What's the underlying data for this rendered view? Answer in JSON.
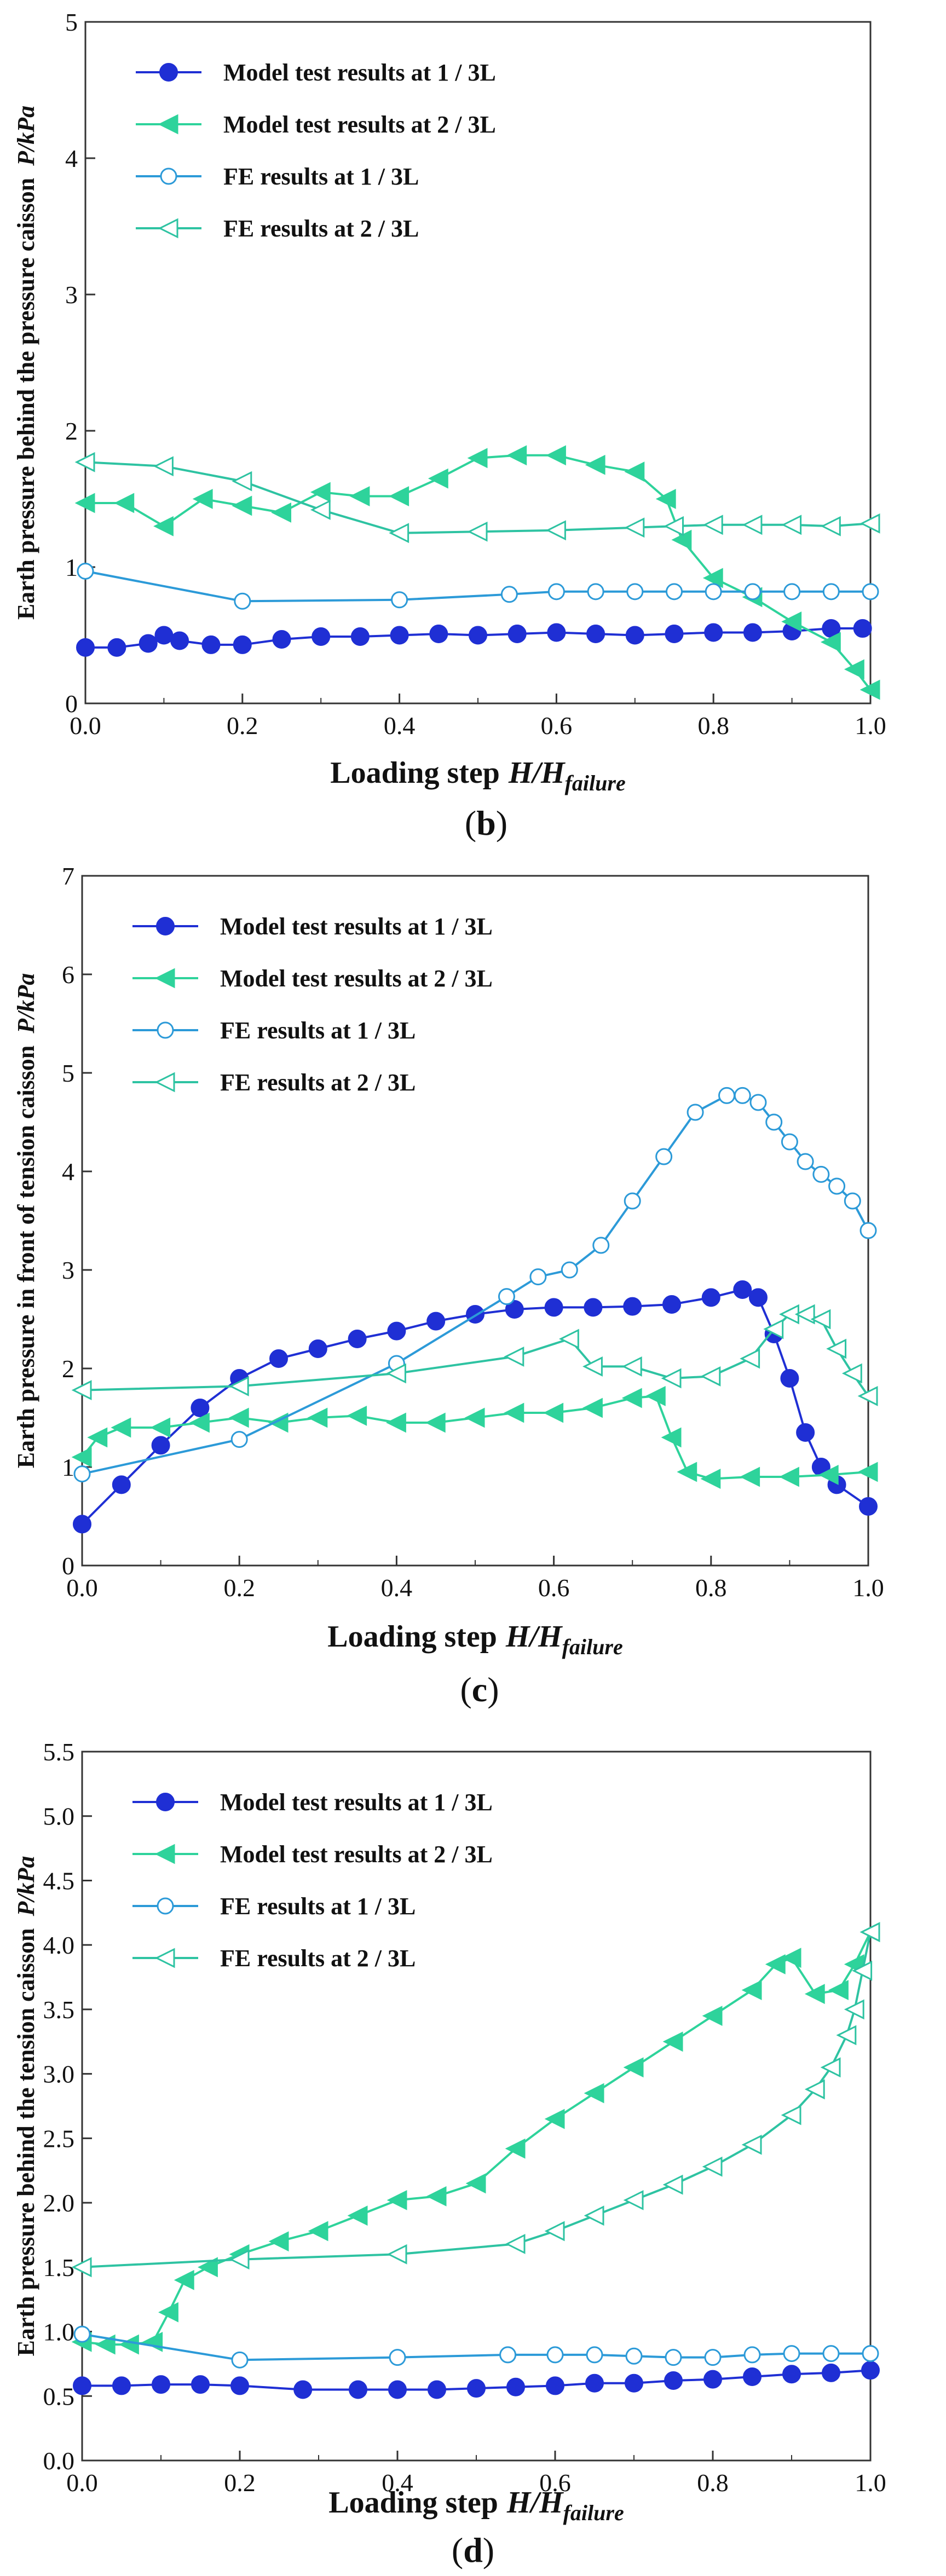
{
  "chart_data": [
    {
      "type": "line",
      "panel_label": "b",
      "ylabel_main": "Earth pressure behind the pressure caisson",
      "ylabel_unit": "P/kPa",
      "xlabel_main": "Loading step",
      "xlabel_var": "H/H",
      "xlabel_sub": "failure",
      "xlim": [
        0,
        1
      ],
      "ylim": [
        0,
        5
      ],
      "xticks": [
        "0.0",
        "0.2",
        "0.4",
        "0.6",
        "0.8",
        "1.0"
      ],
      "yticks": [
        "0",
        "1",
        "2",
        "3",
        "4",
        "5"
      ],
      "series": [
        {
          "name": "Model test results at 1 / 3L",
          "color": "#1f2fd4",
          "marker": "circle-filled",
          "x": [
            0,
            0.04,
            0.08,
            0.1,
            0.12,
            0.16,
            0.2,
            0.25,
            0.3,
            0.35,
            0.4,
            0.45,
            0.5,
            0.55,
            0.6,
            0.65,
            0.7,
            0.75,
            0.8,
            0.85,
            0.9,
            0.95,
            0.99
          ],
          "y": [
            0.41,
            0.41,
            0.44,
            0.5,
            0.46,
            0.43,
            0.43,
            0.47,
            0.49,
            0.49,
            0.5,
            0.51,
            0.5,
            0.51,
            0.52,
            0.51,
            0.5,
            0.51,
            0.52,
            0.52,
            0.53,
            0.55,
            0.55
          ]
        },
        {
          "name": "Model test results at 2 / 3L",
          "color": "#2ed39b",
          "marker": "triangle-left-filled",
          "x": [
            0,
            0.05,
            0.1,
            0.15,
            0.2,
            0.25,
            0.3,
            0.35,
            0.4,
            0.45,
            0.5,
            0.55,
            0.6,
            0.65,
            0.7,
            0.74,
            0.76,
            0.8,
            0.85,
            0.9,
            0.95,
            0.98,
            1.0
          ],
          "y": [
            1.47,
            1.47,
            1.3,
            1.5,
            1.45,
            1.4,
            1.55,
            1.52,
            1.52,
            1.65,
            1.8,
            1.82,
            1.82,
            1.75,
            1.7,
            1.5,
            1.2,
            0.92,
            0.78,
            0.6,
            0.45,
            0.25,
            0.1
          ]
        },
        {
          "name": "FE  results at 1 / 3L",
          "color": "#2c9ad8",
          "marker": "circle-open",
          "x": [
            0,
            0.2,
            0.4,
            0.54,
            0.6,
            0.65,
            0.7,
            0.75,
            0.8,
            0.85,
            0.9,
            0.95,
            1.0
          ],
          "y": [
            0.97,
            0.75,
            0.76,
            0.8,
            0.82,
            0.82,
            0.82,
            0.82,
            0.82,
            0.82,
            0.82,
            0.82,
            0.82
          ]
        },
        {
          "name": "FE  results at 2 / 3L",
          "color": "#2ec3a2",
          "marker": "triangle-left-open",
          "x": [
            0,
            0.1,
            0.2,
            0.3,
            0.4,
            0.5,
            0.6,
            0.7,
            0.75,
            0.8,
            0.85,
            0.9,
            0.95,
            1.0
          ],
          "y": [
            1.77,
            1.74,
            1.63,
            1.42,
            1.25,
            1.26,
            1.27,
            1.29,
            1.3,
            1.31,
            1.31,
            1.31,
            1.3,
            1.32
          ]
        }
      ]
    },
    {
      "type": "line",
      "panel_label": "c",
      "ylabel_main": "Earth pressure in front of tension caisson",
      "ylabel_unit": "P/kPa",
      "xlabel_main": "Loading step",
      "xlabel_var": "H/H",
      "xlabel_sub": "failure",
      "xlim": [
        0,
        1
      ],
      "ylim": [
        0,
        7
      ],
      "xticks": [
        "0.0",
        "0.2",
        "0.4",
        "0.6",
        "0.8",
        "1.0"
      ],
      "yticks": [
        "0",
        "1",
        "2",
        "3",
        "4",
        "5",
        "6",
        "7"
      ],
      "series": [
        {
          "name": "Model test results at 1 / 3L",
          "color": "#1f2fd4",
          "marker": "circle-filled",
          "x": [
            0,
            0.05,
            0.1,
            0.15,
            0.2,
            0.25,
            0.3,
            0.35,
            0.4,
            0.45,
            0.5,
            0.55,
            0.6,
            0.65,
            0.7,
            0.75,
            0.8,
            0.84,
            0.86,
            0.88,
            0.9,
            0.92,
            0.94,
            0.96,
            1.0
          ],
          "y": [
            0.42,
            0.82,
            1.22,
            1.6,
            1.9,
            2.1,
            2.2,
            2.3,
            2.38,
            2.48,
            2.55,
            2.6,
            2.62,
            2.62,
            2.63,
            2.65,
            2.72,
            2.8,
            2.72,
            2.35,
            1.9,
            1.35,
            1.0,
            0.82,
            0.6
          ]
        },
        {
          "name": "Model test results at 2 / 3L",
          "color": "#2ed39b",
          "marker": "triangle-left-filled",
          "x": [
            0,
            0.02,
            0.05,
            0.1,
            0.15,
            0.2,
            0.25,
            0.3,
            0.35,
            0.4,
            0.45,
            0.5,
            0.55,
            0.6,
            0.65,
            0.7,
            0.73,
            0.75,
            0.77,
            0.8,
            0.85,
            0.9,
            0.95,
            1.0
          ],
          "y": [
            1.1,
            1.3,
            1.4,
            1.4,
            1.45,
            1.5,
            1.45,
            1.5,
            1.52,
            1.45,
            1.45,
            1.5,
            1.55,
            1.55,
            1.6,
            1.7,
            1.72,
            1.3,
            0.95,
            0.88,
            0.9,
            0.9,
            0.92,
            0.95
          ]
        },
        {
          "name": "FE  results at 1 / 3L",
          "color": "#2c9ad8",
          "marker": "circle-open",
          "x": [
            0,
            0.2,
            0.4,
            0.54,
            0.58,
            0.62,
            0.66,
            0.7,
            0.74,
            0.78,
            0.82,
            0.84,
            0.86,
            0.88,
            0.9,
            0.92,
            0.94,
            0.96,
            0.98,
            1.0
          ],
          "y": [
            0.93,
            1.28,
            2.05,
            2.73,
            2.93,
            3.0,
            3.25,
            3.7,
            4.15,
            4.6,
            4.77,
            4.77,
            4.7,
            4.5,
            4.3,
            4.1,
            3.97,
            3.85,
            3.7,
            3.4
          ]
        },
        {
          "name": "FE  results at 2 / 3L",
          "color": "#2ec3a2",
          "marker": "triangle-left-open",
          "x": [
            0,
            0.2,
            0.4,
            0.55,
            0.62,
            0.65,
            0.7,
            0.75,
            0.8,
            0.85,
            0.88,
            0.9,
            0.92,
            0.94,
            0.96,
            0.98,
            1.0
          ],
          "y": [
            1.78,
            1.82,
            1.95,
            2.12,
            2.3,
            2.02,
            2.02,
            1.9,
            1.92,
            2.1,
            2.4,
            2.55,
            2.55,
            2.5,
            2.2,
            1.95,
            1.72
          ]
        }
      ]
    },
    {
      "type": "line",
      "panel_label": "d",
      "ylabel_main": "Earth pressure behind the tension caisson",
      "ylabel_unit": "P/kPa",
      "xlabel_main": "Loading step",
      "xlabel_var": "H/H",
      "xlabel_sub": "failure",
      "xlim": [
        0,
        1
      ],
      "ylim": [
        0,
        5.5
      ],
      "xticks": [
        "0.0",
        "0.2",
        "0.4",
        "0.6",
        "0.8",
        "1.0"
      ],
      "yticks": [
        "0.0",
        "0.5",
        "1.0",
        "1.5",
        "2.0",
        "2.5",
        "3.0",
        "3.5",
        "4.0",
        "4.5",
        "5.0",
        "5.5"
      ],
      "series": [
        {
          "name": "Model test results at 1 / 3L",
          "color": "#1f2fd4",
          "marker": "circle-filled",
          "x": [
            0,
            0.05,
            0.1,
            0.15,
            0.2,
            0.28,
            0.35,
            0.4,
            0.45,
            0.5,
            0.55,
            0.6,
            0.65,
            0.7,
            0.75,
            0.8,
            0.85,
            0.9,
            0.95,
            1.0
          ],
          "y": [
            0.58,
            0.58,
            0.59,
            0.59,
            0.58,
            0.55,
            0.55,
            0.55,
            0.55,
            0.56,
            0.57,
            0.58,
            0.6,
            0.6,
            0.62,
            0.63,
            0.65,
            0.67,
            0.68,
            0.7
          ]
        },
        {
          "name": "Model test results at 2 / 3L",
          "color": "#2ed39b",
          "marker": "triangle-left-filled",
          "x": [
            0,
            0.03,
            0.06,
            0.09,
            0.11,
            0.13,
            0.16,
            0.2,
            0.25,
            0.3,
            0.35,
            0.4,
            0.45,
            0.5,
            0.55,
            0.6,
            0.65,
            0.7,
            0.75,
            0.8,
            0.85,
            0.88,
            0.9,
            0.93,
            0.96,
            0.98,
            1.0
          ],
          "y": [
            0.92,
            0.9,
            0.9,
            0.92,
            1.15,
            1.4,
            1.5,
            1.6,
            1.7,
            1.78,
            1.9,
            2.02,
            2.05,
            2.15,
            2.42,
            2.65,
            2.85,
            3.05,
            3.25,
            3.45,
            3.65,
            3.85,
            3.9,
            3.62,
            3.65,
            3.85,
            4.1
          ]
        },
        {
          "name": "FE  results at 1 / 3L",
          "color": "#2c9ad8",
          "marker": "circle-open",
          "x": [
            0,
            0.2,
            0.4,
            0.54,
            0.6,
            0.65,
            0.7,
            0.75,
            0.8,
            0.85,
            0.9,
            0.95,
            1.0
          ],
          "y": [
            0.98,
            0.78,
            0.8,
            0.82,
            0.82,
            0.82,
            0.81,
            0.8,
            0.8,
            0.82,
            0.83,
            0.83,
            0.83
          ]
        },
        {
          "name": "FE  results at 2 / 3L",
          "color": "#2ec3a2",
          "marker": "triangle-left-open",
          "x": [
            0,
            0.2,
            0.4,
            0.55,
            0.6,
            0.65,
            0.7,
            0.75,
            0.8,
            0.85,
            0.9,
            0.93,
            0.95,
            0.97,
            0.98,
            0.99,
            1.0
          ],
          "y": [
            1.5,
            1.56,
            1.6,
            1.68,
            1.78,
            1.9,
            2.02,
            2.14,
            2.28,
            2.45,
            2.68,
            2.88,
            3.05,
            3.3,
            3.5,
            3.8,
            4.1
          ]
        }
      ]
    }
  ]
}
